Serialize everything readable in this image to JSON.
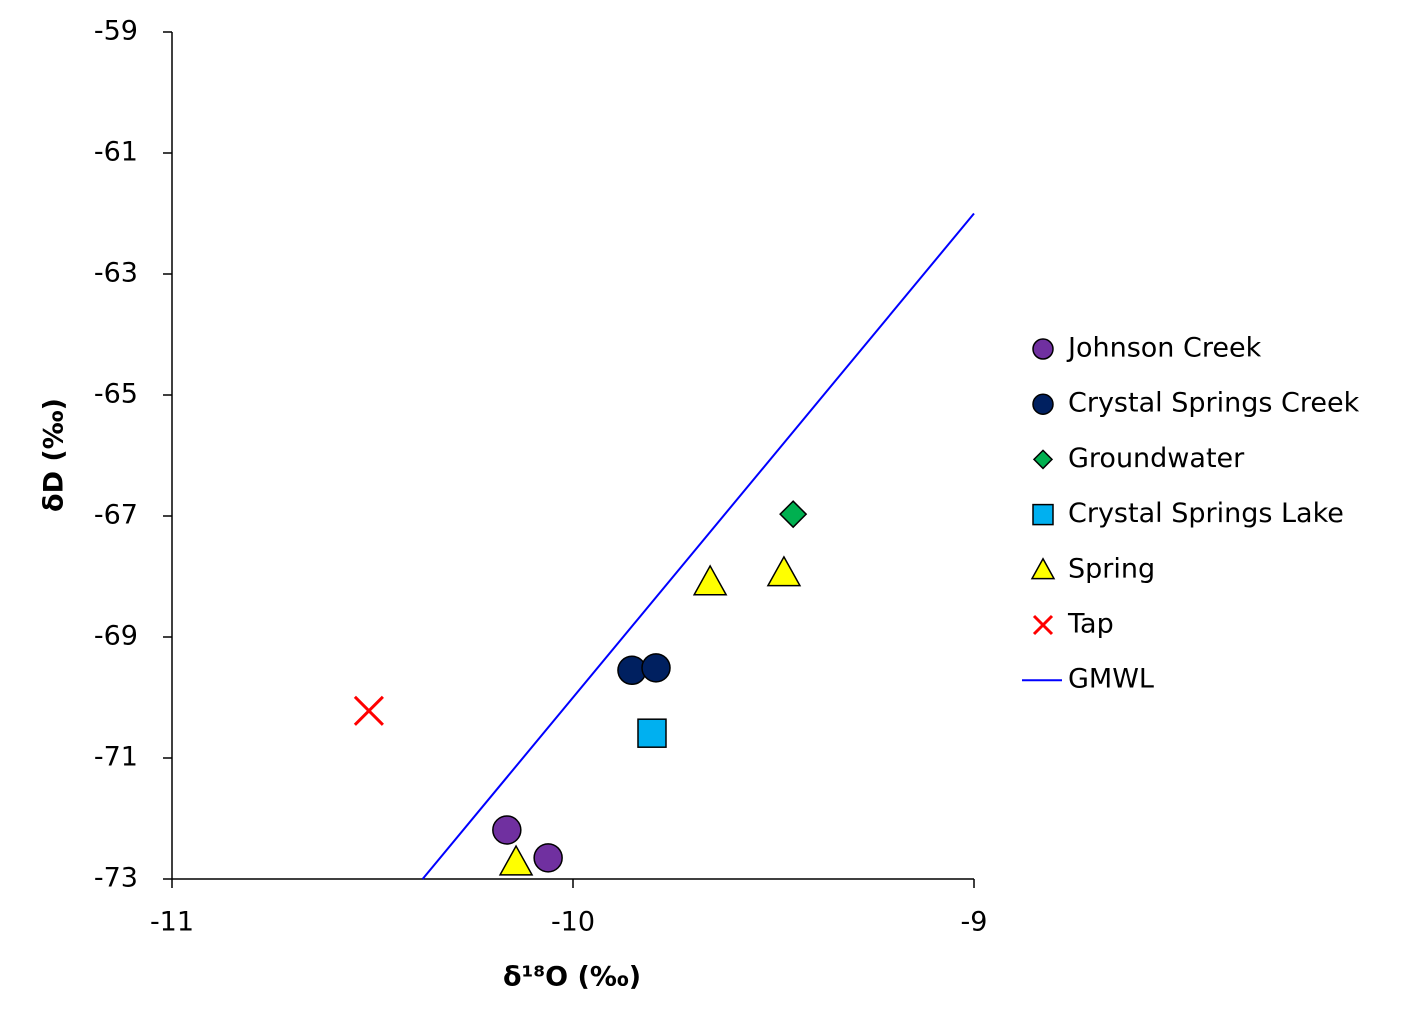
{
  "chart_data": {
    "type": "scatter",
    "xlabel": "δ¹⁸O (‰)",
    "ylabel": "δD (‰)",
    "xlim": [
      -11,
      -9
    ],
    "xticks": [
      -11,
      -10,
      -9
    ],
    "ylim": [
      -73,
      -59
    ],
    "yticks": [
      -73,
      -71,
      -69,
      -67,
      -65,
      -63,
      -61,
      -59
    ],
    "series": [
      {
        "name": "Johnson Creek",
        "color": "#7030a0",
        "marker": "circle",
        "x": [
          -10.165,
          -10.062
        ],
        "values": [
          -72.19,
          -72.65
        ]
      },
      {
        "name": "Crystal Springs Creek",
        "color": "#002060",
        "marker": "circle",
        "x": [
          -9.853,
          -9.793
        ],
        "values": [
          -69.55,
          -69.51
        ]
      },
      {
        "name": "Groundwater",
        "color": "#00b050",
        "marker": "diamond",
        "x": [
          -9.451
        ],
        "values": [
          -66.97
        ]
      },
      {
        "name": "Crystal Springs Lake",
        "color": "#00b0f0",
        "marker": "square",
        "x": [
          -9.803
        ],
        "values": [
          -70.59
        ]
      },
      {
        "name": "Spring",
        "color": "#ffff00",
        "marker": "triangle",
        "x": [
          -9.658,
          -9.474,
          -10.142
        ],
        "values": [
          -68.09,
          -67.94,
          -72.72
        ]
      },
      {
        "name": "Tap",
        "color": "#ff0000",
        "marker": "x",
        "x": [
          -10.509
        ],
        "values": [
          -70.22
        ]
      },
      {
        "name": "GMWL",
        "color": "#0000ff",
        "marker": "line",
        "x": [
          -10.375,
          -9
        ],
        "values": [
          -73,
          -62
        ]
      }
    ]
  }
}
